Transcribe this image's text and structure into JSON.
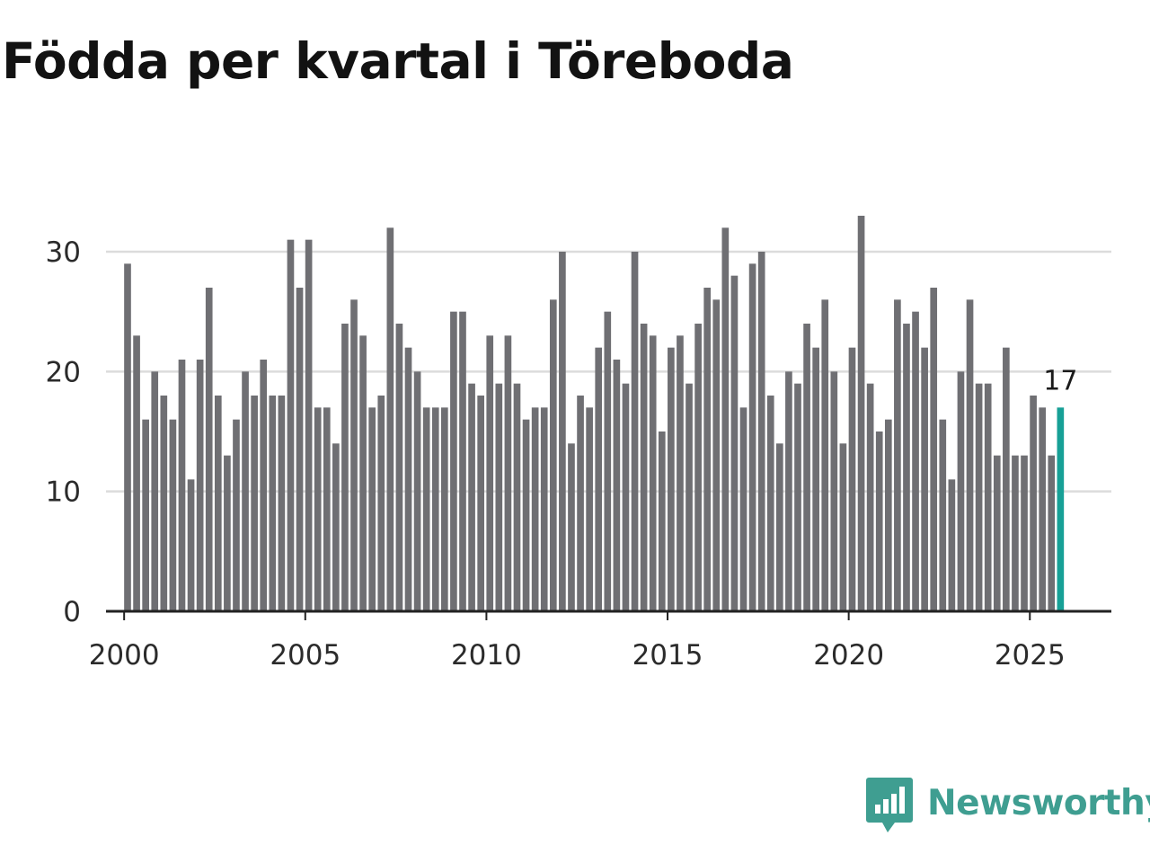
{
  "title": "Födda per kvartal i Töreboda",
  "brand": {
    "name": "Newsworthy",
    "color": "#3f9e91",
    "icon": "newsworthy-logo-icon"
  },
  "colors": {
    "bar": "#6f6f73",
    "highlight": "#17a096",
    "grid": "#dcdcdc",
    "axis": "#222222"
  },
  "chart_data": {
    "type": "bar",
    "title": "Födda per kvartal i Töreboda",
    "xlabel": "",
    "ylabel": "",
    "x_start": 2000,
    "x_step_per_bar": 0.25,
    "xlim": [
      1999.5,
      2027.25
    ],
    "ylim": [
      0,
      33
    ],
    "yticks": [
      0,
      10,
      20,
      30
    ],
    "xticks": [
      2000,
      2005,
      2010,
      2015,
      2020,
      2025
    ],
    "grid": true,
    "values": [
      29,
      23,
      16,
      20,
      18,
      16,
      21,
      11,
      21,
      27,
      18,
      13,
      16,
      20,
      18,
      21,
      18,
      18,
      31,
      27,
      31,
      17,
      17,
      14,
      24,
      26,
      23,
      17,
      18,
      32,
      24,
      22,
      20,
      17,
      17,
      17,
      25,
      25,
      19,
      18,
      23,
      19,
      23,
      19,
      16,
      17,
      17,
      26,
      30,
      14,
      18,
      17,
      22,
      25,
      21,
      19,
      30,
      24,
      23,
      15,
      22,
      23,
      19,
      24,
      27,
      26,
      32,
      28,
      17,
      29,
      30,
      18,
      14,
      20,
      19,
      24,
      22,
      26,
      20,
      14,
      22,
      33,
      19,
      15,
      16,
      26,
      24,
      25,
      22,
      27,
      16,
      11,
      20,
      26,
      19,
      19,
      13,
      22,
      13,
      13,
      18,
      17,
      13,
      17
    ],
    "highlight_index": 103,
    "highlight_label": "17"
  }
}
